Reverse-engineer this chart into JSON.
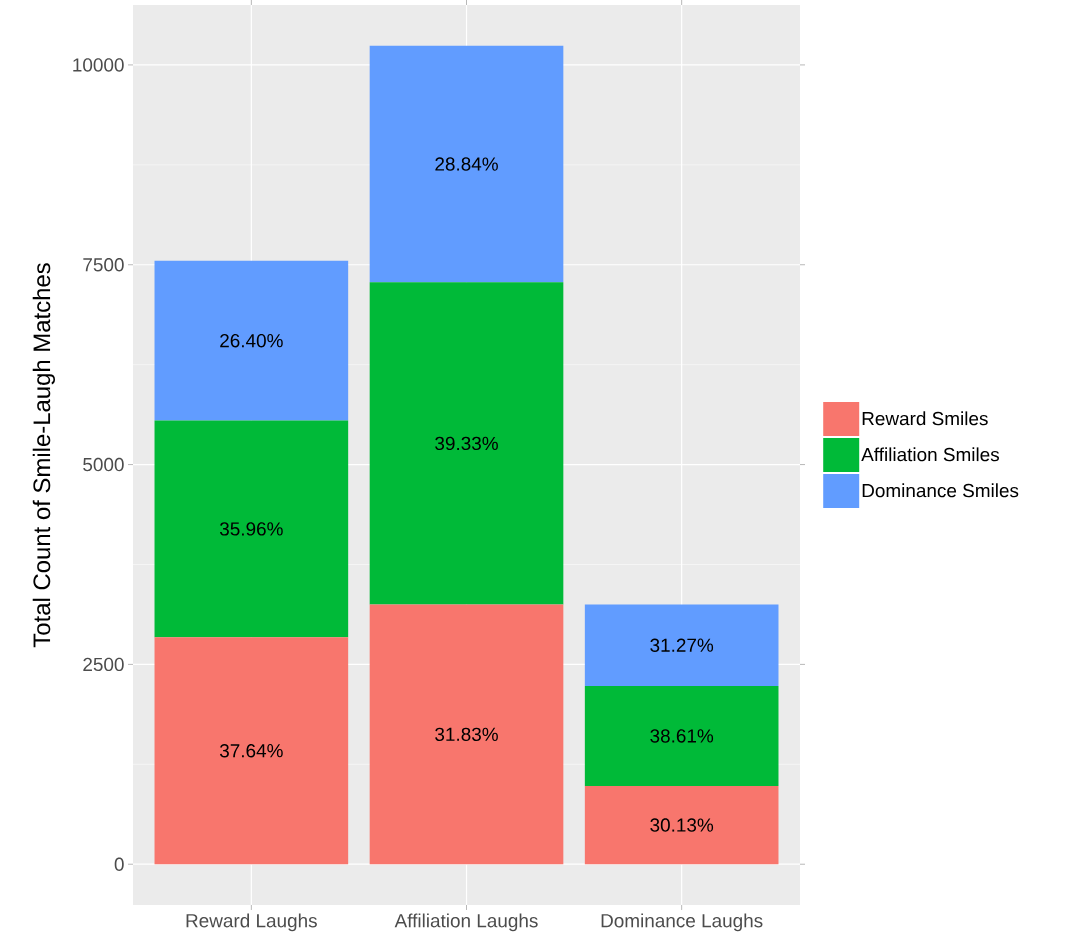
{
  "chart_data": {
    "type": "bar",
    "stacked": true,
    "ylabel": "Total Count of Smile-Laugh Matches",
    "categories": [
      "Reward Laughs",
      "Affiliation Laughs",
      "Dominance Laughs"
    ],
    "series": [
      {
        "name": "Reward Smiles",
        "color": "#f8766d",
        "values": [
          2840,
          3250,
          980
        ]
      },
      {
        "name": "Affiliation Smiles",
        "color": "#00ba38",
        "values": [
          2710,
          4030,
          1250
        ]
      },
      {
        "name": "Dominance Smiles",
        "color": "#619cff",
        "values": [
          2000,
          2960,
          1020
        ]
      }
    ],
    "annotations": [
      "37.64%",
      "35.96%",
      "26.40%",
      "31.83%",
      "39.33%",
      "28.84%",
      "30.13%",
      "38.61%",
      "31.27%"
    ],
    "ylim": [
      -510,
      10750
    ],
    "yticks": [
      0,
      {
        "value": 1250,
        "label": null
      },
      2500,
      {
        "value": 3750,
        "label": null
      },
      5000,
      {
        "value": 6250,
        "label": null
      },
      7500,
      {
        "value": 8750,
        "label": null
      },
      10000
    ],
    "grid": true,
    "legend": "right"
  }
}
